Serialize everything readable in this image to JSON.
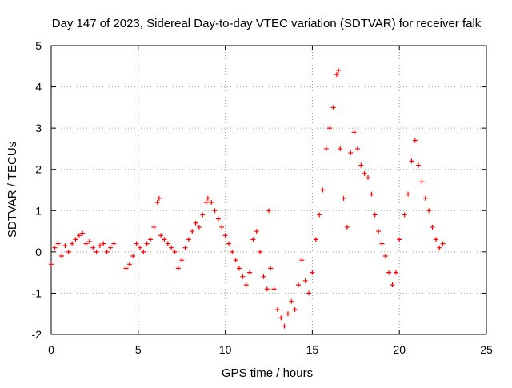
{
  "chart_data": {
    "type": "scatter",
    "title": "Day 147 of 2023, Sidereal Day-to-day VTEC variation (SDTVAR) for receiver falk",
    "xlabel": "GPS time / hours",
    "ylabel": "SDTVAR / TECUs",
    "xlim": [
      0,
      25
    ],
    "ylim": [
      -2,
      5
    ],
    "xticks": [
      "0",
      "5",
      "10",
      "15",
      "20",
      "25"
    ],
    "yticks": [
      "-2",
      "-1",
      "0",
      "1",
      "2",
      "3",
      "4",
      "5"
    ],
    "grid": true,
    "marker": "+",
    "series": [
      {
        "name": "SDTVAR",
        "color": "#ff0000",
        "x": [
          0.0,
          0.2,
          0.4,
          0.6,
          0.8,
          1.0,
          1.2,
          1.4,
          1.6,
          1.8,
          2.0,
          2.2,
          2.4,
          2.6,
          2.8,
          3.0,
          3.2,
          3.4,
          3.6,
          4.3,
          4.5,
          4.7,
          4.9,
          5.1,
          5.3,
          5.5,
          5.7,
          5.9,
          6.1,
          6.2,
          6.3,
          6.5,
          6.7,
          6.9,
          7.1,
          7.3,
          7.5,
          7.7,
          7.9,
          8.1,
          8.3,
          8.5,
          8.7,
          8.9,
          9.0,
          9.2,
          9.4,
          9.6,
          9.8,
          10.0,
          10.2,
          10.4,
          10.6,
          10.8,
          11.0,
          11.2,
          11.4,
          11.6,
          11.8,
          12.0,
          12.2,
          12.4,
          12.5,
          12.6,
          12.8,
          13.0,
          13.2,
          13.4,
          13.6,
          13.8,
          14.0,
          14.2,
          14.4,
          14.6,
          14.8,
          15.0,
          15.2,
          15.4,
          15.6,
          15.8,
          16.0,
          16.2,
          16.4,
          16.5,
          16.6,
          16.8,
          17.0,
          17.2,
          17.4,
          17.6,
          17.8,
          18.0,
          18.2,
          18.4,
          18.6,
          18.8,
          19.0,
          19.2,
          19.4,
          19.6,
          19.8,
          20.0,
          20.3,
          20.5,
          20.7,
          20.9,
          21.1,
          21.3,
          21.5,
          21.7,
          21.9,
          22.1,
          22.3,
          22.5
        ],
        "y": [
          -0.3,
          0.1,
          0.2,
          -0.1,
          0.15,
          0.0,
          0.2,
          0.3,
          0.4,
          0.45,
          0.2,
          0.25,
          0.1,
          0.0,
          0.15,
          0.2,
          0.0,
          0.1,
          0.2,
          -0.4,
          -0.3,
          -0.1,
          0.2,
          0.1,
          0.0,
          0.2,
          0.3,
          0.6,
          1.2,
          1.3,
          0.4,
          0.3,
          0.2,
          0.1,
          0.0,
          -0.4,
          -0.2,
          0.1,
          0.3,
          0.5,
          0.7,
          0.6,
          0.9,
          1.2,
          1.3,
          1.2,
          1.0,
          0.8,
          0.6,
          0.4,
          0.2,
          0.0,
          -0.2,
          -0.4,
          -0.6,
          -0.8,
          -0.5,
          0.3,
          0.5,
          0.0,
          -0.6,
          -0.9,
          1.0,
          -0.4,
          -0.9,
          -1.4,
          -1.6,
          -1.8,
          -1.5,
          -1.2,
          -1.4,
          -0.8,
          -0.2,
          -0.7,
          -1.0,
          -0.5,
          0.3,
          0.9,
          1.5,
          2.5,
          3.0,
          3.5,
          4.3,
          4.4,
          2.5,
          1.3,
          0.6,
          2.4,
          2.9,
          2.5,
          2.1,
          1.9,
          1.8,
          1.4,
          0.9,
          0.5,
          0.2,
          -0.1,
          -0.5,
          -0.8,
          -0.5,
          0.3,
          0.9,
          1.4,
          2.2,
          2.7,
          2.1,
          1.7,
          1.3,
          1.0,
          0.6,
          0.3,
          0.1,
          0.2
        ]
      }
    ]
  }
}
